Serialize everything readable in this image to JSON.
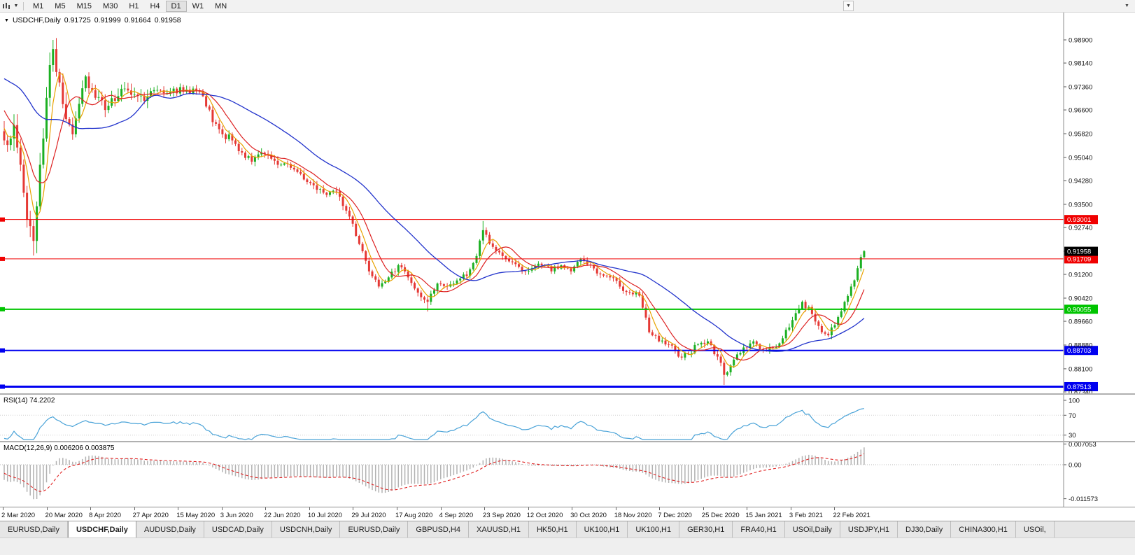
{
  "toolbar": {
    "timeframes": [
      "M1",
      "M5",
      "M15",
      "M30",
      "H1",
      "H4",
      "D1",
      "W1",
      "MN"
    ],
    "selected": "D1",
    "overflow_icon": "▼"
  },
  "chart": {
    "title": "USDCHF,Daily",
    "open": "0.91725",
    "high": "0.91999",
    "low": "0.91664",
    "close": "0.91958",
    "current_price": "0.91958",
    "collapse_icon": "▼",
    "y_axis_labels": [
      "0.98900",
      "0.98140",
      "0.97360",
      "0.96600",
      "0.95820",
      "0.95040",
      "0.94280",
      "0.93500",
      "0.92740",
      "0.91960",
      "0.91200",
      "0.90420",
      "0.89660",
      "0.88880",
      "0.88100",
      "0.87340"
    ],
    "x_axis_labels": [
      "2 Mar 2020",
      "20 Mar 2020",
      "8 Apr 2020",
      "27 Apr 2020",
      "15 May 2020",
      "3 Jun 2020",
      "22 Jun 2020",
      "10 Jul 2020",
      "29 Jul 2020",
      "17 Aug 2020",
      "4 Sep 2020",
      "23 Sep 2020",
      "12 Oct 2020",
      "30 Oct 2020",
      "18 Nov 2020",
      "7 Dec 2020",
      "25 Dec 2020",
      "15 Jan 2021",
      "3 Feb 2021",
      "22 Feb 2021"
    ],
    "horizontal_lines": [
      {
        "price": 0.93001,
        "label": "0.93001",
        "color": "#f00000",
        "width": 1
      },
      {
        "price": 0.91709,
        "label": "0.91709",
        "color": "#f00000",
        "width": 1
      },
      {
        "price": 0.90055,
        "label": "0.90055",
        "color": "#00c400",
        "width": 2
      },
      {
        "price": 0.88703,
        "label": "0.88703",
        "color": "#0000f0",
        "width": 2
      },
      {
        "price": 0.87513,
        "label": "0.87513",
        "color": "#0000f0",
        "width": 3
      }
    ]
  },
  "rsi": {
    "label": "RSI(14) 74.2202",
    "period": 14,
    "value": "74.2202",
    "levels": [
      "100",
      "70",
      "30"
    ],
    "level_values": [
      100,
      70,
      30
    ]
  },
  "macd": {
    "label": "MACD(12,26,9) 0.006206 0.003875",
    "value": "0.006206",
    "signal_value": "0.003875",
    "levels": [
      "0.007053",
      "0.00",
      "-0.011573"
    ],
    "level_values": [
      0.007053,
      0,
      -0.011573
    ]
  },
  "tabs": {
    "items": [
      "EURUSD,Daily",
      "USDCHF,Daily",
      "AUDUSD,Daily",
      "USDCAD,Daily",
      "USDCNH,Daily",
      "EURUSD,Daily",
      "GBPUSD,H4",
      "XAUUSD,H1",
      "HK50,H1",
      "UK100,H1",
      "UK100,H1",
      "GER30,H1",
      "FRA40,H1",
      "USOil,Daily",
      "USDJPY,H1",
      "DJ30,Daily",
      "CHINA300,H1",
      "USOil,"
    ],
    "active_index": 1
  },
  "colors": {
    "candle_up": "#1cb022",
    "candle_down": "#e53935",
    "ma_fast": "#e8a200",
    "ma_mid": "#dd2222",
    "ma_slow": "#2233cc",
    "rsi_line": "#4aa3d8",
    "macd_hist": "#b2b2b2",
    "macd_signal": "#e02020",
    "price_badge_bg": "#000000",
    "axis_text": "#111111"
  },
  "chart_data": {
    "type": "candlestick",
    "symbol": "USDCHF",
    "timeframe": "Daily",
    "current_ohlc": {
      "open": 0.91725,
      "high": 0.91999,
      "low": 0.91664,
      "close": 0.91958
    },
    "price_axis_range": [
      0.8734,
      0.989
    ],
    "candle_count": 265,
    "noise_seed": 7,
    "prehistory_anchors": [
      [
        -40,
        0.971
      ],
      [
        -25,
        0.9845
      ],
      [
        -12,
        0.979
      ],
      [
        -1,
        0.959
      ]
    ],
    "close_anchors": [
      [
        0,
        0.956
      ],
      [
        3,
        0.961
      ],
      [
        5,
        0.948
      ],
      [
        7,
        0.93
      ],
      [
        9,
        0.923
      ],
      [
        11,
        0.948
      ],
      [
        13,
        0.97
      ],
      [
        15,
        0.986
      ],
      [
        17,
        0.975
      ],
      [
        19,
        0.963
      ],
      [
        21,
        0.958
      ],
      [
        23,
        0.968
      ],
      [
        25,
        0.977
      ],
      [
        28,
        0.97
      ],
      [
        31,
        0.966
      ],
      [
        34,
        0.969
      ],
      [
        37,
        0.973
      ],
      [
        40,
        0.971
      ],
      [
        43,
        0.969
      ],
      [
        46,
        0.9725
      ],
      [
        49,
        0.9715
      ],
      [
        52,
        0.973
      ],
      [
        55,
        0.972
      ],
      [
        58,
        0.973
      ],
      [
        61,
        0.9705
      ],
      [
        64,
        0.962
      ],
      [
        67,
        0.958
      ],
      [
        70,
        0.956
      ],
      [
        73,
        0.952
      ],
      [
        76,
        0.949
      ],
      [
        79,
        0.952
      ],
      [
        82,
        0.95
      ],
      [
        85,
        0.948
      ],
      [
        88,
        0.947
      ],
      [
        91,
        0.945
      ],
      [
        94,
        0.942
      ],
      [
        97,
        0.94
      ],
      [
        100,
        0.939
      ],
      [
        103,
        0.9375
      ],
      [
        106,
        0.931
      ],
      [
        109,
        0.922
      ],
      [
        112,
        0.913
      ],
      [
        115,
        0.908
      ],
      [
        118,
        0.911
      ],
      [
        121,
        0.915
      ],
      [
        124,
        0.911
      ],
      [
        127,
        0.906
      ],
      [
        130,
        0.903
      ],
      [
        133,
        0.909
      ],
      [
        136,
        0.908
      ],
      [
        139,
        0.91
      ],
      [
        142,
        0.9115
      ],
      [
        145,
        0.918
      ],
      [
        147,
        0.9265
      ],
      [
        150,
        0.921
      ],
      [
        153,
        0.918
      ],
      [
        156,
        0.916
      ],
      [
        159,
        0.913
      ],
      [
        162,
        0.914
      ],
      [
        165,
        0.915
      ],
      [
        168,
        0.913
      ],
      [
        171,
        0.915
      ],
      [
        174,
        0.913
      ],
      [
        177,
        0.917
      ],
      [
        180,
        0.915
      ],
      [
        183,
        0.912
      ],
      [
        186,
        0.911
      ],
      [
        189,
        0.908
      ],
      [
        192,
        0.906
      ],
      [
        195,
        0.905
      ],
      [
        198,
        0.893
      ],
      [
        201,
        0.89
      ],
      [
        204,
        0.889
      ],
      [
        207,
        0.885
      ],
      [
        210,
        0.886
      ],
      [
        213,
        0.889
      ],
      [
        216,
        0.89
      ],
      [
        219,
        0.885
      ],
      [
        221,
        0.879
      ],
      [
        224,
        0.884
      ],
      [
        227,
        0.888
      ],
      [
        230,
        0.89
      ],
      [
        233,
        0.887
      ],
      [
        236,
        0.888
      ],
      [
        239,
        0.891
      ],
      [
        242,
        0.897
      ],
      [
        245,
        0.903
      ],
      [
        248,
        0.899
      ],
      [
        251,
        0.893
      ],
      [
        253,
        0.892
      ],
      [
        256,
        0.898
      ],
      [
        258,
        0.903
      ],
      [
        260,
        0.908
      ],
      [
        262,
        0.914
      ],
      [
        264,
        0.9196
      ]
    ],
    "wick_overrides": {
      "9": {
        "l": 0.9182
      },
      "15": {
        "h": 0.989
      },
      "130": {
        "l": 0.8998
      },
      "147": {
        "h": 0.9295
      },
      "221": {
        "l": 0.8757
      },
      "264": {
        "h": 0.92
      }
    },
    "moving_averages": [
      {
        "name": "fast",
        "period": 5,
        "color": "#e8a200"
      },
      {
        "name": "mid",
        "period": 10,
        "color": "#dd2222"
      },
      {
        "name": "slow",
        "period": 34,
        "color": "#2233cc"
      }
    ],
    "indicators": [
      {
        "name": "RSI",
        "period": 14,
        "current": 74.2202
      },
      {
        "name": "MACD",
        "fast": 12,
        "slow": 26,
        "signal": 9,
        "current": 0.006206,
        "current_signal": 0.003875,
        "axis_max": 0.007053,
        "axis_min": -0.011573
      }
    ]
  }
}
